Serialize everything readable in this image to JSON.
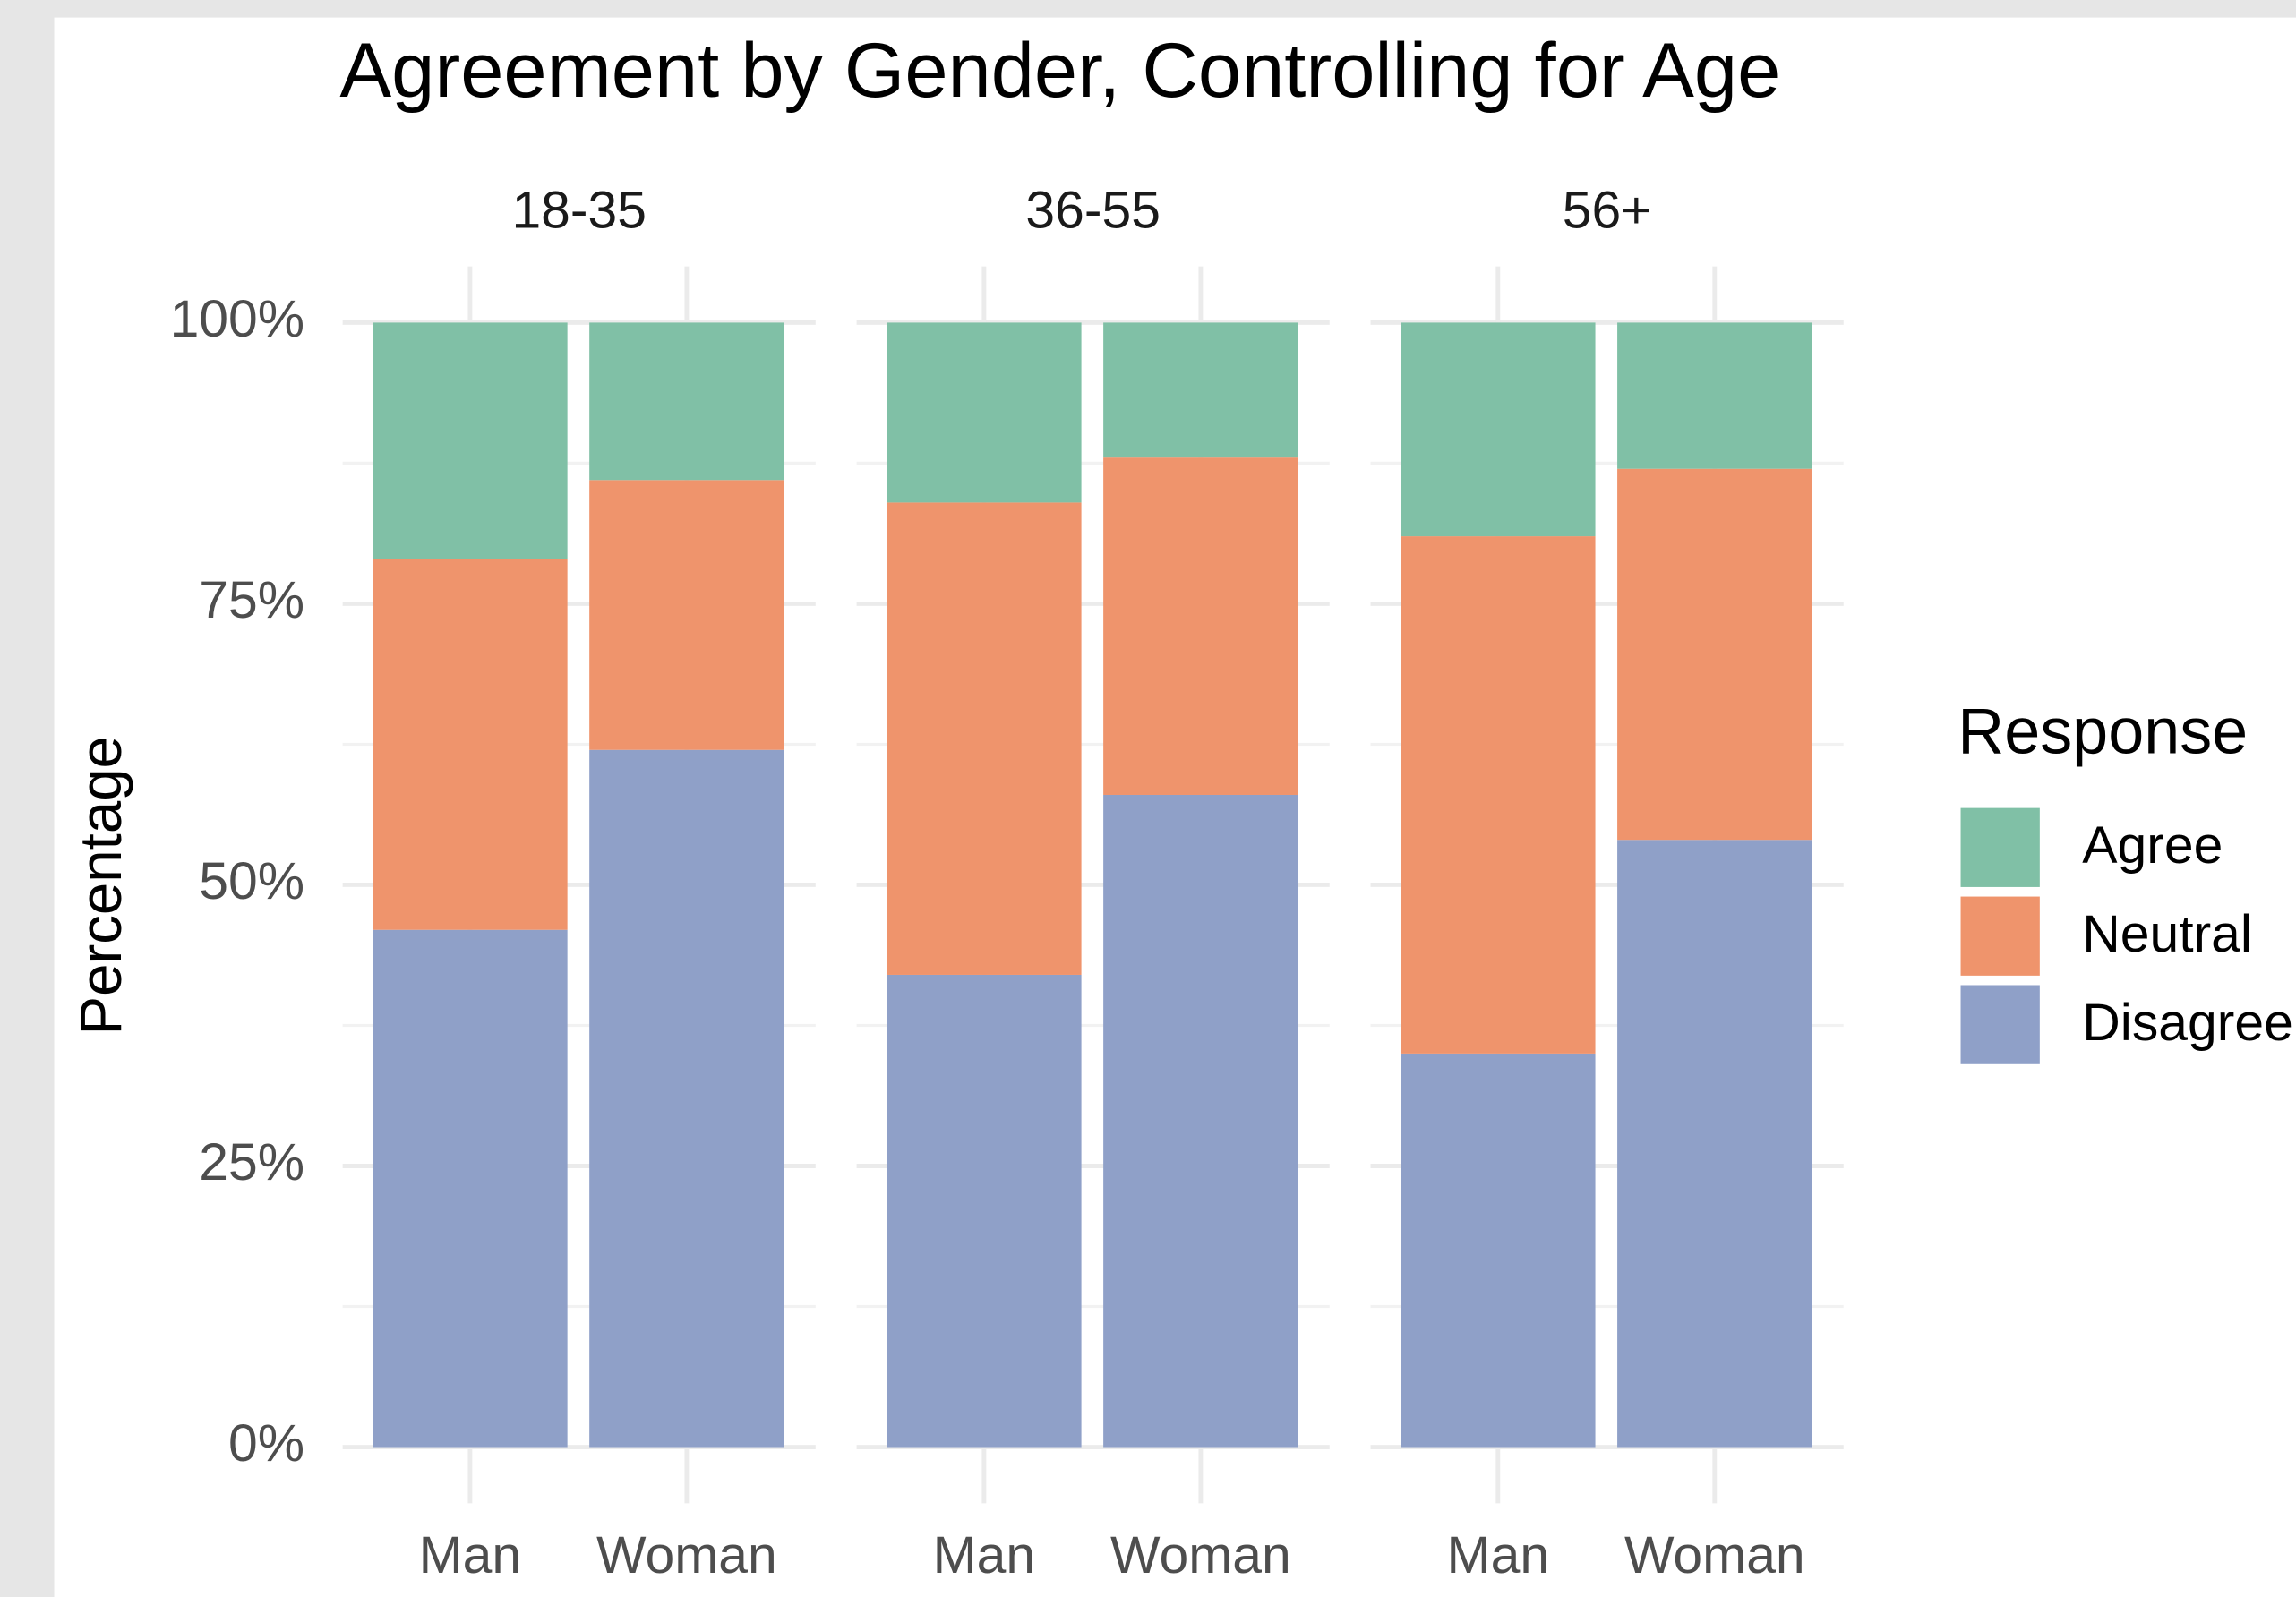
{
  "chart_data": {
    "type": "bar",
    "stacked": true,
    "title": "Agreement by Gender, Controlling for Age",
    "y_label": "Percentage",
    "legend_title": "Response",
    "legend_position": "right",
    "grid": true,
    "facets": [
      "18-35",
      "36-55",
      "56+"
    ],
    "categories": [
      "Man",
      "Woman"
    ],
    "series": [
      {
        "name": "Disagree",
        "color": "#8fa0c8",
        "values": [
          [
            46,
            62
          ],
          [
            42,
            58
          ],
          [
            35,
            54
          ]
        ]
      },
      {
        "name": "Neutral",
        "color": "#ef946c",
        "values": [
          [
            33,
            24
          ],
          [
            42,
            30
          ],
          [
            46,
            33
          ]
        ]
      },
      {
        "name": "Agree",
        "color": "#80c0a6",
        "values": [
          [
            21,
            14
          ],
          [
            16,
            12
          ],
          [
            19,
            13
          ]
        ]
      }
    ],
    "ylim": [
      -5,
      105
    ],
    "yticks": [
      {
        "value": 0,
        "label": "0%"
      },
      {
        "value": 25,
        "label": "25%"
      },
      {
        "value": 50,
        "label": "50%"
      },
      {
        "value": 75,
        "label": "75%"
      },
      {
        "value": 100,
        "label": "100%"
      }
    ]
  }
}
